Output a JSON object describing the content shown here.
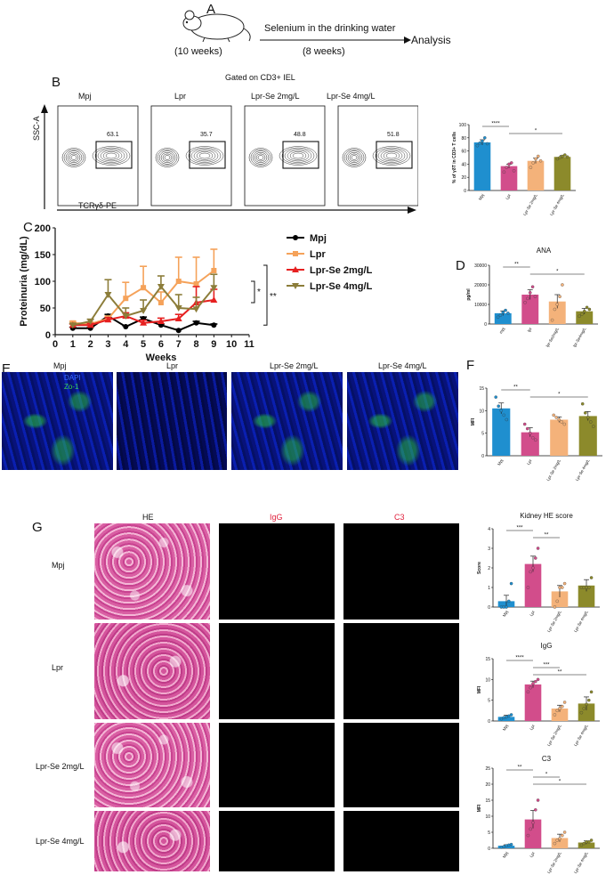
{
  "panel_labels": {
    "A": "A",
    "B": "B",
    "C": "C",
    "D": "D",
    "E": "E",
    "F": "F",
    "G": "G"
  },
  "panelA": {
    "age_start": "(10 weeks)",
    "treatment": "Selenium in the drinking water",
    "duration": "(8 weeks)",
    "endpoint": "Analysis"
  },
  "panelB": {
    "gate_title": "Gated on CD3+ IEL",
    "groups": [
      "Mpj",
      "Lpr",
      "Lpr-Se 2mg/L",
      "Lpr-Se 4mg/L"
    ],
    "gate_values": [
      "63.1",
      "35.7",
      "48.8",
      "51.8"
    ],
    "y_axis": "SSC-A",
    "x_axis": "TCRγδ-PE"
  },
  "panelE": {
    "groups": [
      "Mpj",
      "Lpr",
      "Lpr-Se 2mg/L",
      "Lpr-Se 4mg/L"
    ],
    "stain_dapi": "DAPI",
    "stain_zo1": "Zo-1"
  },
  "panelG": {
    "row_labels": [
      "Mpj",
      "Lpr",
      "Lpr-Se 2mg/L",
      "Lpr-Se 4mg/L"
    ],
    "col_he": "HE",
    "col_igg": "IgG",
    "col_c3": "C3"
  },
  "colors": {
    "Mpj": "#1f8fcf",
    "Lpr": "#d24d8b",
    "Se2": "#f4b27a",
    "Se4": "#8c8a2b",
    "lineMpj": "#000000",
    "lineLpr": "#f5a25a",
    "lineSe2": "#e62020",
    "lineSe4": "#8c7d3a"
  },
  "chart_data": [
    {
      "id": "gd",
      "type": "bar",
      "ylabel": "% of γδT in CD3+ T cells",
      "ylim": [
        0,
        100
      ],
      "yticks": [
        0,
        20,
        40,
        60,
        80,
        100
      ],
      "categories": [
        "Mpj",
        "Lpr",
        "Lpr-Se 2mg/L",
        "Lpr-Se 4mg/L"
      ],
      "values": [
        73,
        37,
        45,
        51
      ],
      "errors": [
        4,
        3,
        4,
        2
      ],
      "points": [
        [
          68,
          72,
          75,
          80,
          71
        ],
        [
          28,
          35,
          40,
          42,
          30
        ],
        [
          35,
          42,
          48,
          52,
          45
        ],
        [
          48,
          50,
          52,
          54,
          51
        ]
      ],
      "sig": [
        {
          "from": 0,
          "to": 1,
          "text": "****"
        },
        {
          "from": 1,
          "to": 3,
          "text": "*"
        }
      ]
    },
    {
      "id": "prot",
      "type": "line",
      "ylabel": "Proteinuria (mg/dL)",
      "xlabel": "Weeks",
      "xlim": [
        0,
        11
      ],
      "xticks": [
        0,
        1,
        2,
        3,
        4,
        5,
        6,
        7,
        8,
        9,
        10,
        11
      ],
      "ylim": [
        0,
        200
      ],
      "yticks": [
        0,
        50,
        100,
        150,
        200
      ],
      "series": [
        {
          "name": "Mpj",
          "x": [
            1,
            2,
            3,
            4,
            5,
            6,
            7,
            8,
            9
          ],
          "y": [
            12,
            12,
            35,
            15,
            30,
            18,
            8,
            22,
            18
          ],
          "err": [
            2,
            2,
            3,
            2,
            3,
            2,
            2,
            3,
            2
          ]
        },
        {
          "name": "Lpr",
          "x": [
            1,
            2,
            3,
            4,
            5,
            6,
            7,
            8,
            9
          ],
          "y": [
            22,
            20,
            30,
            68,
            88,
            60,
            100,
            95,
            120
          ],
          "err": [
            3,
            3,
            5,
            30,
            40,
            20,
            45,
            50,
            40
          ]
        },
        {
          "name": "Lpr-Se 2mg/L",
          "x": [
            1,
            2,
            3,
            4,
            5,
            6,
            7,
            8,
            9
          ],
          "y": [
            18,
            18,
            28,
            35,
            22,
            25,
            30,
            60,
            65
          ],
          "err": [
            2,
            3,
            4,
            6,
            5,
            6,
            8,
            30,
            20
          ]
        },
        {
          "name": "Lpr-Se 4mg/L",
          "x": [
            1,
            2,
            3,
            4,
            5,
            6,
            7,
            8,
            9
          ],
          "y": [
            18,
            25,
            75,
            35,
            45,
            90,
            50,
            48,
            88
          ],
          "err": [
            3,
            4,
            28,
            15,
            20,
            20,
            25,
            22,
            25
          ]
        }
      ],
      "sig": [
        "*",
        "**"
      ]
    },
    {
      "id": "ana",
      "type": "bar",
      "title": "ANA",
      "ylabel": "pg/ml",
      "ylim": [
        0,
        30000
      ],
      "yticks": [
        0,
        10000,
        20000,
        30000
      ],
      "categories": [
        "mpj",
        "lpr",
        "lpr-Se2mg/L",
        "lpr-Se4mg/L"
      ],
      "values": [
        5500,
        15000,
        11500,
        6500
      ],
      "errors": [
        1200,
        2500,
        3500,
        1500
      ],
      "points": [
        [
          3500,
          4500,
          6000,
          7000,
          5500
        ],
        [
          11000,
          13000,
          16000,
          19000,
          14000
        ],
        [
          2000,
          7500,
          10000,
          14000,
          20000
        ],
        [
          4000,
          5000,
          6500,
          8500,
          7500
        ]
      ],
      "sig": [
        {
          "from": 0,
          "to": 1,
          "text": "**"
        },
        {
          "from": 1,
          "to": 3,
          "text": "*"
        }
      ]
    },
    {
      "id": "zo1",
      "type": "bar",
      "ylabel": "MFI",
      "ylim": [
        0,
        15
      ],
      "yticks": [
        0,
        5,
        10,
        15
      ],
      "categories": [
        "Mpj",
        "Lpr",
        "Lpr-Se 2mg/L",
        "Lpr-Se 4mg/L"
      ],
      "values": [
        10.5,
        5.2,
        8.0,
        8.8
      ],
      "errors": [
        1.2,
        1.0,
        0.6,
        1.0
      ],
      "points": [
        [
          13,
          11,
          10,
          9,
          8
        ],
        [
          7,
          6,
          5,
          4,
          3.5
        ],
        [
          9,
          8.5,
          8,
          7.5,
          7
        ],
        [
          11.5,
          9.5,
          8.5,
          7.5,
          6.5
        ]
      ],
      "sig": [
        {
          "from": 0,
          "to": 1,
          "text": "**"
        },
        {
          "from": 1,
          "to": 3,
          "text": "*"
        }
      ]
    },
    {
      "id": "he",
      "type": "bar",
      "title": "Kidney HE score",
      "ylabel": "Score",
      "ylim": [
        0,
        4
      ],
      "yticks": [
        0,
        1,
        2,
        3,
        4
      ],
      "categories": [
        "Mpj",
        "Lpr",
        "Lpr-Se 2mg/L",
        "Lpr-Se 4mg/L"
      ],
      "values": [
        0.3,
        2.2,
        0.8,
        1.1
      ],
      "errors": [
        0.3,
        0.4,
        0.3,
        0.3
      ],
      "points": [
        [
          0,
          0,
          0,
          0.3,
          1.2
        ],
        [
          1,
          1.8,
          2,
          2.5,
          3
        ],
        [
          0,
          0.3,
          1,
          1,
          1.2
        ],
        [
          1,
          1,
          1,
          1,
          1.5
        ]
      ],
      "sig": [
        {
          "from": 0,
          "to": 1,
          "text": "***"
        },
        {
          "from": 1,
          "to": 2,
          "text": "**"
        }
      ]
    },
    {
      "id": "igg",
      "type": "bar",
      "title": "IgG",
      "ylabel": "MFI",
      "ylim": [
        0,
        15
      ],
      "yticks": [
        0,
        5,
        10,
        15
      ],
      "categories": [
        "Mpj",
        "Lpr",
        "Lpr-Se 2mg/L",
        "Lpr-Se 4mg/L"
      ],
      "values": [
        1.0,
        8.8,
        3.0,
        4.2
      ],
      "errors": [
        0.4,
        0.8,
        0.8,
        1.6
      ],
      "points": [
        [
          0.5,
          0.8,
          1,
          1.2,
          1.5
        ],
        [
          7,
          8,
          9,
          9.5,
          10
        ],
        [
          1.5,
          2.5,
          3,
          3.5,
          4.5
        ],
        [
          2,
          3,
          4,
          5,
          7
        ]
      ],
      "sig": [
        {
          "from": 0,
          "to": 1,
          "text": "****"
        },
        {
          "from": 1,
          "to": 2,
          "text": "***"
        },
        {
          "from": 1,
          "to": 3,
          "text": "**"
        }
      ]
    },
    {
      "id": "c3",
      "type": "bar",
      "title": "C3",
      "ylabel": "MFI",
      "ylim": [
        0,
        25
      ],
      "yticks": [
        0,
        5,
        10,
        15,
        20,
        25
      ],
      "categories": [
        "Mpj",
        "Lpr",
        "Lpr-Se 2mg/L",
        "Lpr-Se 4mg/L"
      ],
      "values": [
        0.8,
        9.0,
        3.2,
        1.8
      ],
      "errors": [
        0.3,
        2.8,
        1.2,
        0.5
      ],
      "points": [
        [
          0.3,
          0.5,
          0.8,
          1,
          1.2
        ],
        [
          4,
          6,
          8,
          12,
          15
        ],
        [
          1.5,
          2.5,
          3,
          4,
          5
        ],
        [
          1,
          1.5,
          2,
          2,
          2.5
        ]
      ],
      "sig": [
        {
          "from": 0,
          "to": 1,
          "text": "**"
        },
        {
          "from": 1,
          "to": 2,
          "text": "*"
        },
        {
          "from": 1,
          "to": 3,
          "text": "*"
        }
      ]
    }
  ]
}
